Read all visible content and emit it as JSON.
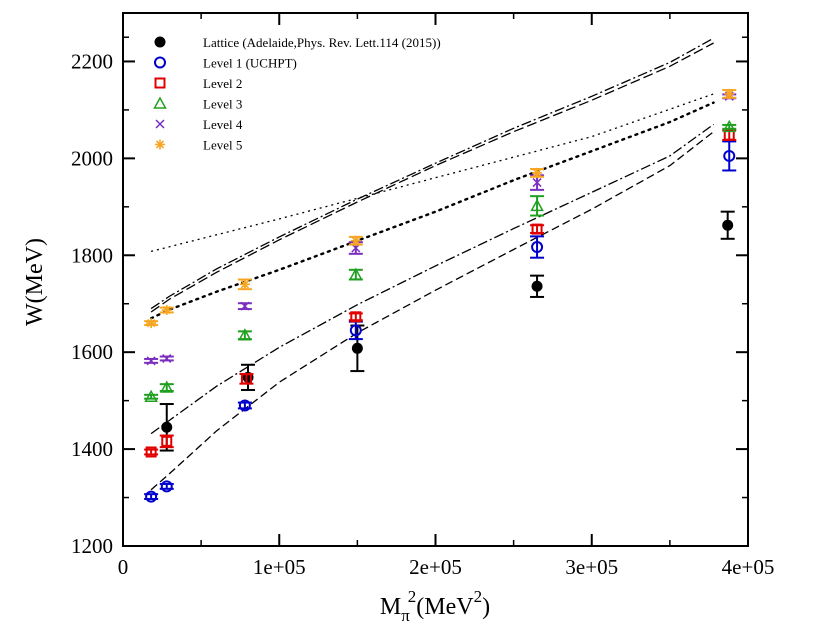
{
  "chart_data": {
    "type": "scatter",
    "title": "",
    "xlabel": {
      "base": "M",
      "sub": "π",
      "sup": "2",
      "units": "(MeV",
      "units_sup": "2",
      "close": ")"
    },
    "ylabel": "W(MeV)",
    "xlim": [
      0,
      400000
    ],
    "ylim": [
      1200,
      2300
    ],
    "x_ticks": [
      {
        "value": 0,
        "label": "0"
      },
      {
        "value": 100000,
        "label": "1e+05"
      },
      {
        "value": 200000,
        "label": "2e+05"
      },
      {
        "value": 300000,
        "label": "3e+05"
      },
      {
        "value": 400000,
        "label": "4e+05"
      }
    ],
    "y_ticks": [
      {
        "value": 1200,
        "label": "1200"
      },
      {
        "value": 1400,
        "label": "1400"
      },
      {
        "value": 1600,
        "label": "1600"
      },
      {
        "value": 1800,
        "label": "1800"
      },
      {
        "value": 2000,
        "label": "2000"
      },
      {
        "value": 2200,
        "label": "2200"
      }
    ],
    "legend_position": "top-left",
    "series": [
      {
        "name": "Lattice (Adelaide,Phys. Rev. Lett.114 (2015))",
        "marker": "filled-circle",
        "color": "#000000",
        "points": [
          {
            "x": 28000,
            "y": 1445,
            "err": 48
          },
          {
            "x": 80000,
            "y": 1548,
            "err": 26
          },
          {
            "x": 150000,
            "y": 1608,
            "err": 47
          },
          {
            "x": 265000,
            "y": 1736,
            "err": 22
          },
          {
            "x": 387000,
            "y": 1862,
            "err": 28
          }
        ]
      },
      {
        "name": "Level 1 (UCHPT)",
        "marker": "open-circle",
        "color": "#0000cc",
        "points": [
          {
            "x": 18000,
            "y": 1302,
            "err": 5
          },
          {
            "x": 28000,
            "y": 1323,
            "err": 5
          },
          {
            "x": 78000,
            "y": 1490,
            "err": 6
          },
          {
            "x": 149000,
            "y": 1645,
            "err": 18
          },
          {
            "x": 265000,
            "y": 1817,
            "err": 22
          },
          {
            "x": 388000,
            "y": 2005,
            "err": 30
          }
        ]
      },
      {
        "name": "Level 2",
        "marker": "open-square",
        "color": "#e00000",
        "points": [
          {
            "x": 18000,
            "y": 1394,
            "err": 5
          },
          {
            "x": 28000,
            "y": 1416,
            "err": 12
          },
          {
            "x": 79000,
            "y": 1545,
            "err": 10
          },
          {
            "x": 149000,
            "y": 1673,
            "err": 7
          },
          {
            "x": 265000,
            "y": 1854,
            "err": 8
          },
          {
            "x": 388000,
            "y": 2048,
            "err": 10
          }
        ]
      },
      {
        "name": "Level 3",
        "marker": "open-triangle",
        "color": "#20a020",
        "points": [
          {
            "x": 18000,
            "y": 1508,
            "err": 4
          },
          {
            "x": 28000,
            "y": 1527,
            "err": 7
          },
          {
            "x": 78000,
            "y": 1635,
            "err": 8
          },
          {
            "x": 149000,
            "y": 1760,
            "err": 10
          },
          {
            "x": 265000,
            "y": 1902,
            "err": 20
          },
          {
            "x": 388000,
            "y": 2065,
            "err": 4
          }
        ]
      },
      {
        "name": "Level 4",
        "marker": "cross",
        "color": "#7b2fbe",
        "points": [
          {
            "x": 18000,
            "y": 1582,
            "err": 4
          },
          {
            "x": 28000,
            "y": 1587,
            "err": 4
          },
          {
            "x": 78000,
            "y": 1695,
            "err": 6
          },
          {
            "x": 149000,
            "y": 1815,
            "err": 12
          },
          {
            "x": 265000,
            "y": 1950,
            "err": 15
          },
          {
            "x": 388000,
            "y": 2128,
            "err": 4
          }
        ]
      },
      {
        "name": "Level 5",
        "marker": "asterisk",
        "color": "#f6a623",
        "points": [
          {
            "x": 18000,
            "y": 1660,
            "err": 4
          },
          {
            "x": 28000,
            "y": 1687,
            "err": 5
          },
          {
            "x": 78000,
            "y": 1740,
            "err": 10
          },
          {
            "x": 149000,
            "y": 1830,
            "err": 8
          },
          {
            "x": 265000,
            "y": 1970,
            "err": 8
          },
          {
            "x": 388000,
            "y": 2133,
            "err": 8
          }
        ]
      }
    ],
    "curves": [
      {
        "name": "dashed-upper-1",
        "dash": "10,4",
        "color": "#000000",
        "points": [
          [
            18000,
            1683
          ],
          [
            30000,
            1710
          ],
          [
            60000,
            1765
          ],
          [
            100000,
            1832
          ],
          [
            150000,
            1910
          ],
          [
            200000,
            1985
          ],
          [
            250000,
            2055
          ],
          [
            300000,
            2120
          ],
          [
            350000,
            2190
          ],
          [
            378000,
            2238
          ]
        ]
      },
      {
        "name": "dashdot-upper",
        "dash": "10,3,2,3",
        "color": "#000000",
        "points": [
          [
            18000,
            1690
          ],
          [
            30000,
            1716
          ],
          [
            60000,
            1772
          ],
          [
            100000,
            1838
          ],
          [
            150000,
            1916
          ],
          [
            200000,
            1990
          ],
          [
            250000,
            2062
          ],
          [
            300000,
            2128
          ],
          [
            350000,
            2198
          ],
          [
            378000,
            2248
          ]
        ]
      },
      {
        "name": "dotted-thin",
        "dash": "2,4",
        "color": "#000000",
        "points": [
          [
            18000,
            1808
          ],
          [
            100000,
            1875
          ],
          [
            200000,
            1960
          ],
          [
            300000,
            2045
          ],
          [
            378000,
            2133
          ]
        ]
      },
      {
        "name": "dotted-thick",
        "dash": "2,5",
        "color": "#000000",
        "thick": true,
        "points": [
          [
            18000,
            1670
          ],
          [
            30000,
            1688
          ],
          [
            60000,
            1725
          ],
          [
            100000,
            1770
          ],
          [
            150000,
            1830
          ],
          [
            200000,
            1890
          ],
          [
            250000,
            1955
          ],
          [
            300000,
            2015
          ],
          [
            350000,
            2075
          ],
          [
            378000,
            2115
          ]
        ]
      },
      {
        "name": "dashdot-lower",
        "dash": "10,3,2,3",
        "color": "#000000",
        "points": [
          [
            18000,
            1432
          ],
          [
            30000,
            1460
          ],
          [
            60000,
            1530
          ],
          [
            100000,
            1610
          ],
          [
            150000,
            1698
          ],
          [
            200000,
            1778
          ],
          [
            250000,
            1855
          ],
          [
            300000,
            1930
          ],
          [
            350000,
            2005
          ],
          [
            378000,
            2070
          ]
        ]
      },
      {
        "name": "dashed-lower",
        "dash": "8,4",
        "color": "#000000",
        "points": [
          [
            18000,
            1316
          ],
          [
            30000,
            1350
          ],
          [
            60000,
            1438
          ],
          [
            100000,
            1538
          ],
          [
            150000,
            1640
          ],
          [
            200000,
            1728
          ],
          [
            250000,
            1812
          ],
          [
            300000,
            1895
          ],
          [
            350000,
            1985
          ],
          [
            378000,
            2055
          ]
        ]
      }
    ]
  }
}
